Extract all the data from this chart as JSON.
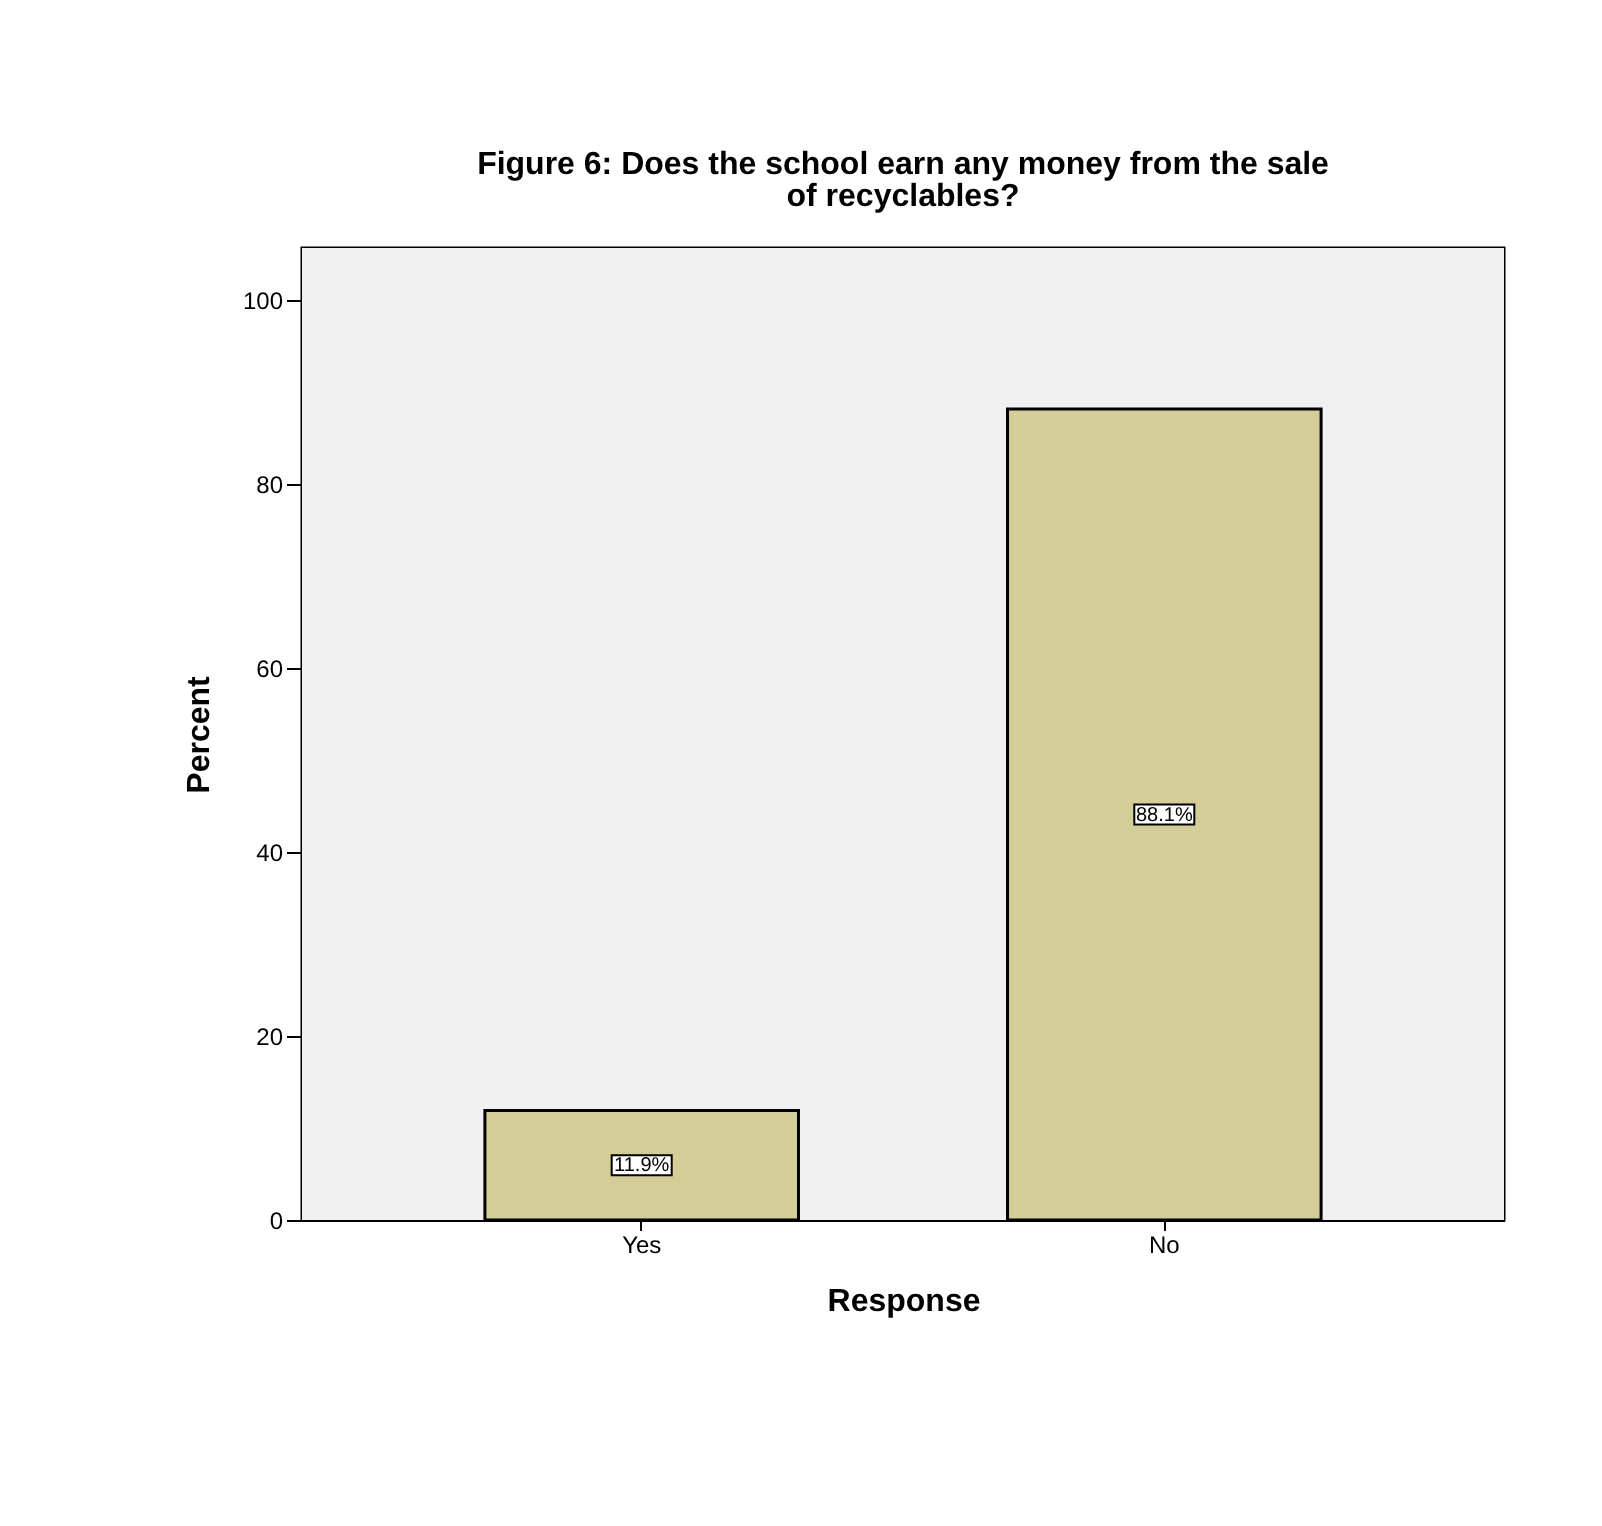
{
  "chart_data": {
    "type": "bar",
    "title": "Figure 6: Does the school earn any money from the sale of recyclables?",
    "xlabel": "Response",
    "ylabel": "Percent",
    "categories": [
      "Yes",
      "No"
    ],
    "values": [
      11.9,
      88.1
    ],
    "value_labels": [
      "11.9%",
      "88.1%"
    ],
    "color": "#d3ce97",
    "ylim": [
      0,
      105.6
    ],
    "yticks": [
      0,
      20,
      40,
      60,
      80,
      100
    ],
    "grid": false
  }
}
